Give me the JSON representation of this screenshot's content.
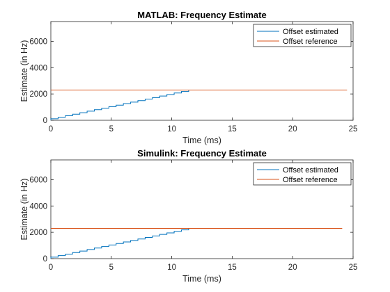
{
  "colors": {
    "estimated": "#0072BD",
    "reference": "#D95319",
    "axis": "#262626",
    "background": "#ffffff"
  },
  "chart_data": [
    {
      "type": "line",
      "title": "MATLAB: Frequency Estimate",
      "xlabel": "Time (ms)",
      "ylabel": "Estimate (in Hz)",
      "xlim": [
        0,
        25
      ],
      "ylim": [
        0,
        7500
      ],
      "xticks": [
        0,
        5,
        10,
        15,
        20,
        25
      ],
      "yticks": [
        0,
        2000,
        4000,
        6000
      ],
      "grid": false,
      "legend_position": "top-right",
      "series": [
        {
          "name": "Offset estimated",
          "style": "staircase",
          "x": [
            0,
            12
          ],
          "y": [
            0,
            2300
          ],
          "steps": 20
        },
        {
          "name": "Offset reference",
          "style": "line",
          "x": [
            0,
            24.5
          ],
          "y": [
            2300,
            2300
          ]
        }
      ]
    },
    {
      "type": "line",
      "title": "Simulink: Frequency Estimate",
      "xlabel": "Time (ms)",
      "ylabel": "Estimate (in Hz)",
      "xlim": [
        0,
        25
      ],
      "ylim": [
        0,
        7500
      ],
      "xticks": [
        0,
        5,
        10,
        15,
        20,
        25
      ],
      "yticks": [
        0,
        2000,
        4000,
        6000
      ],
      "grid": false,
      "legend_position": "top-right",
      "series": [
        {
          "name": "Offset estimated",
          "style": "staircase",
          "x": [
            0,
            12
          ],
          "y": [
            0,
            2300
          ],
          "steps": 20
        },
        {
          "name": "Offset reference",
          "style": "line",
          "x": [
            0,
            24.1
          ],
          "y": [
            2300,
            2300
          ]
        }
      ]
    }
  ]
}
